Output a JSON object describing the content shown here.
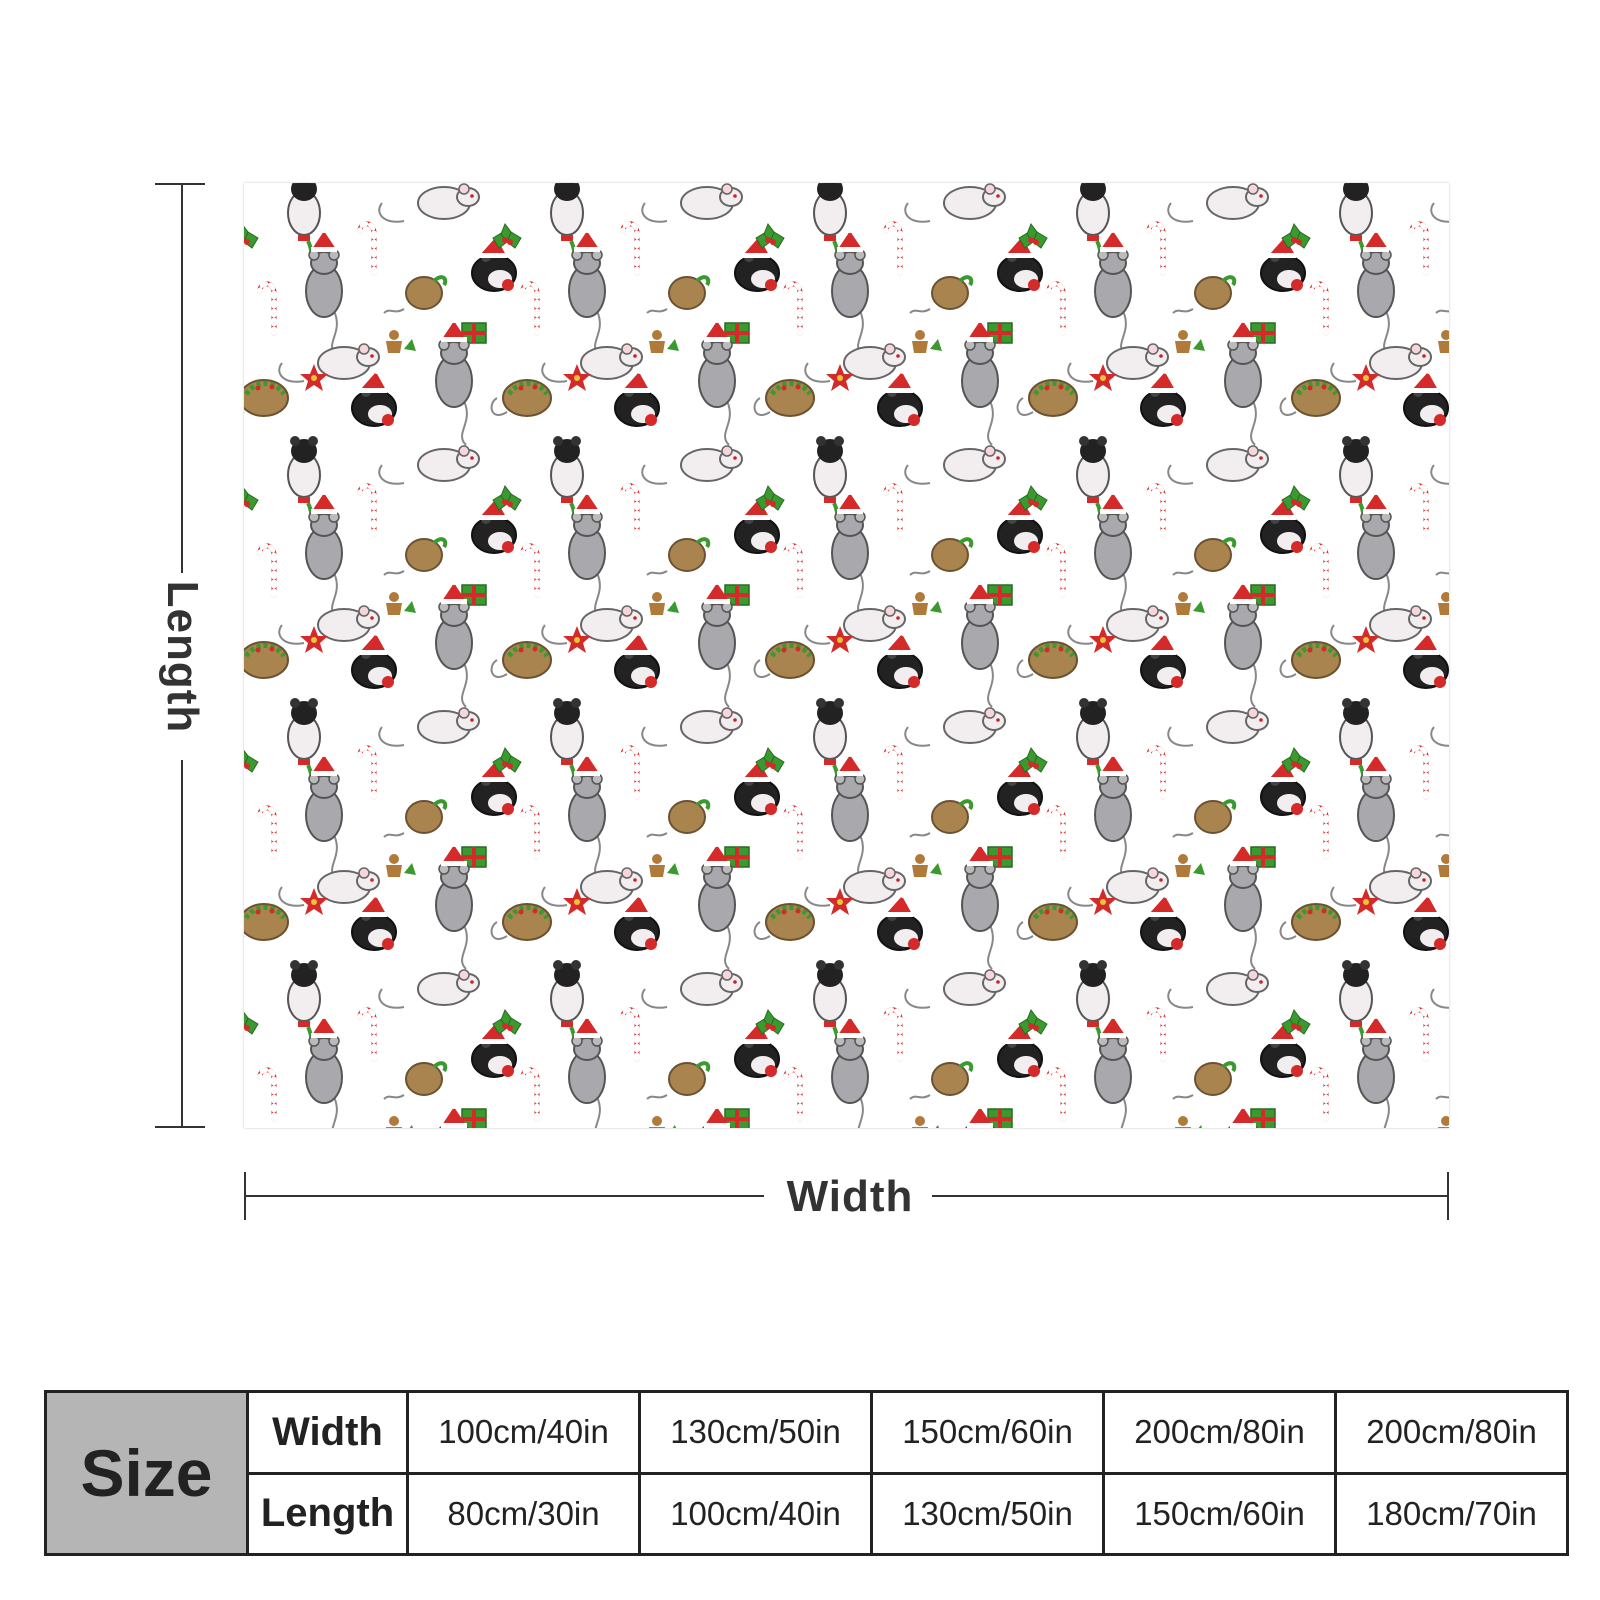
{
  "diagram": {
    "length_label": "Length",
    "width_label": "Width"
  },
  "pattern": {
    "motifs": [
      "rat-icon",
      "candy-cane-icon",
      "holly-icon",
      "poinsettia-icon",
      "santa-hat-icon",
      "gift-icon",
      "gingerbread-icon"
    ],
    "colors": {
      "background": "#ffffff",
      "rat_white": "#f2eef0",
      "rat_grey": "#a9a9ad",
      "rat_black": "#222222",
      "rat_brown": "#a9844f",
      "red": "#d42a2a",
      "green": "#3a9a2f",
      "outline": "#555555"
    }
  },
  "size_table": {
    "size_label": "Size",
    "width_label": "Width",
    "length_label": "Length",
    "widths": [
      "100cm/40in",
      "130cm/50in",
      "150cm/60in",
      "200cm/80in",
      "200cm/80in"
    ],
    "lengths": [
      "80cm/30in",
      "100cm/40in",
      "130cm/50in",
      "150cm/60in",
      "180cm/70in"
    ]
  }
}
